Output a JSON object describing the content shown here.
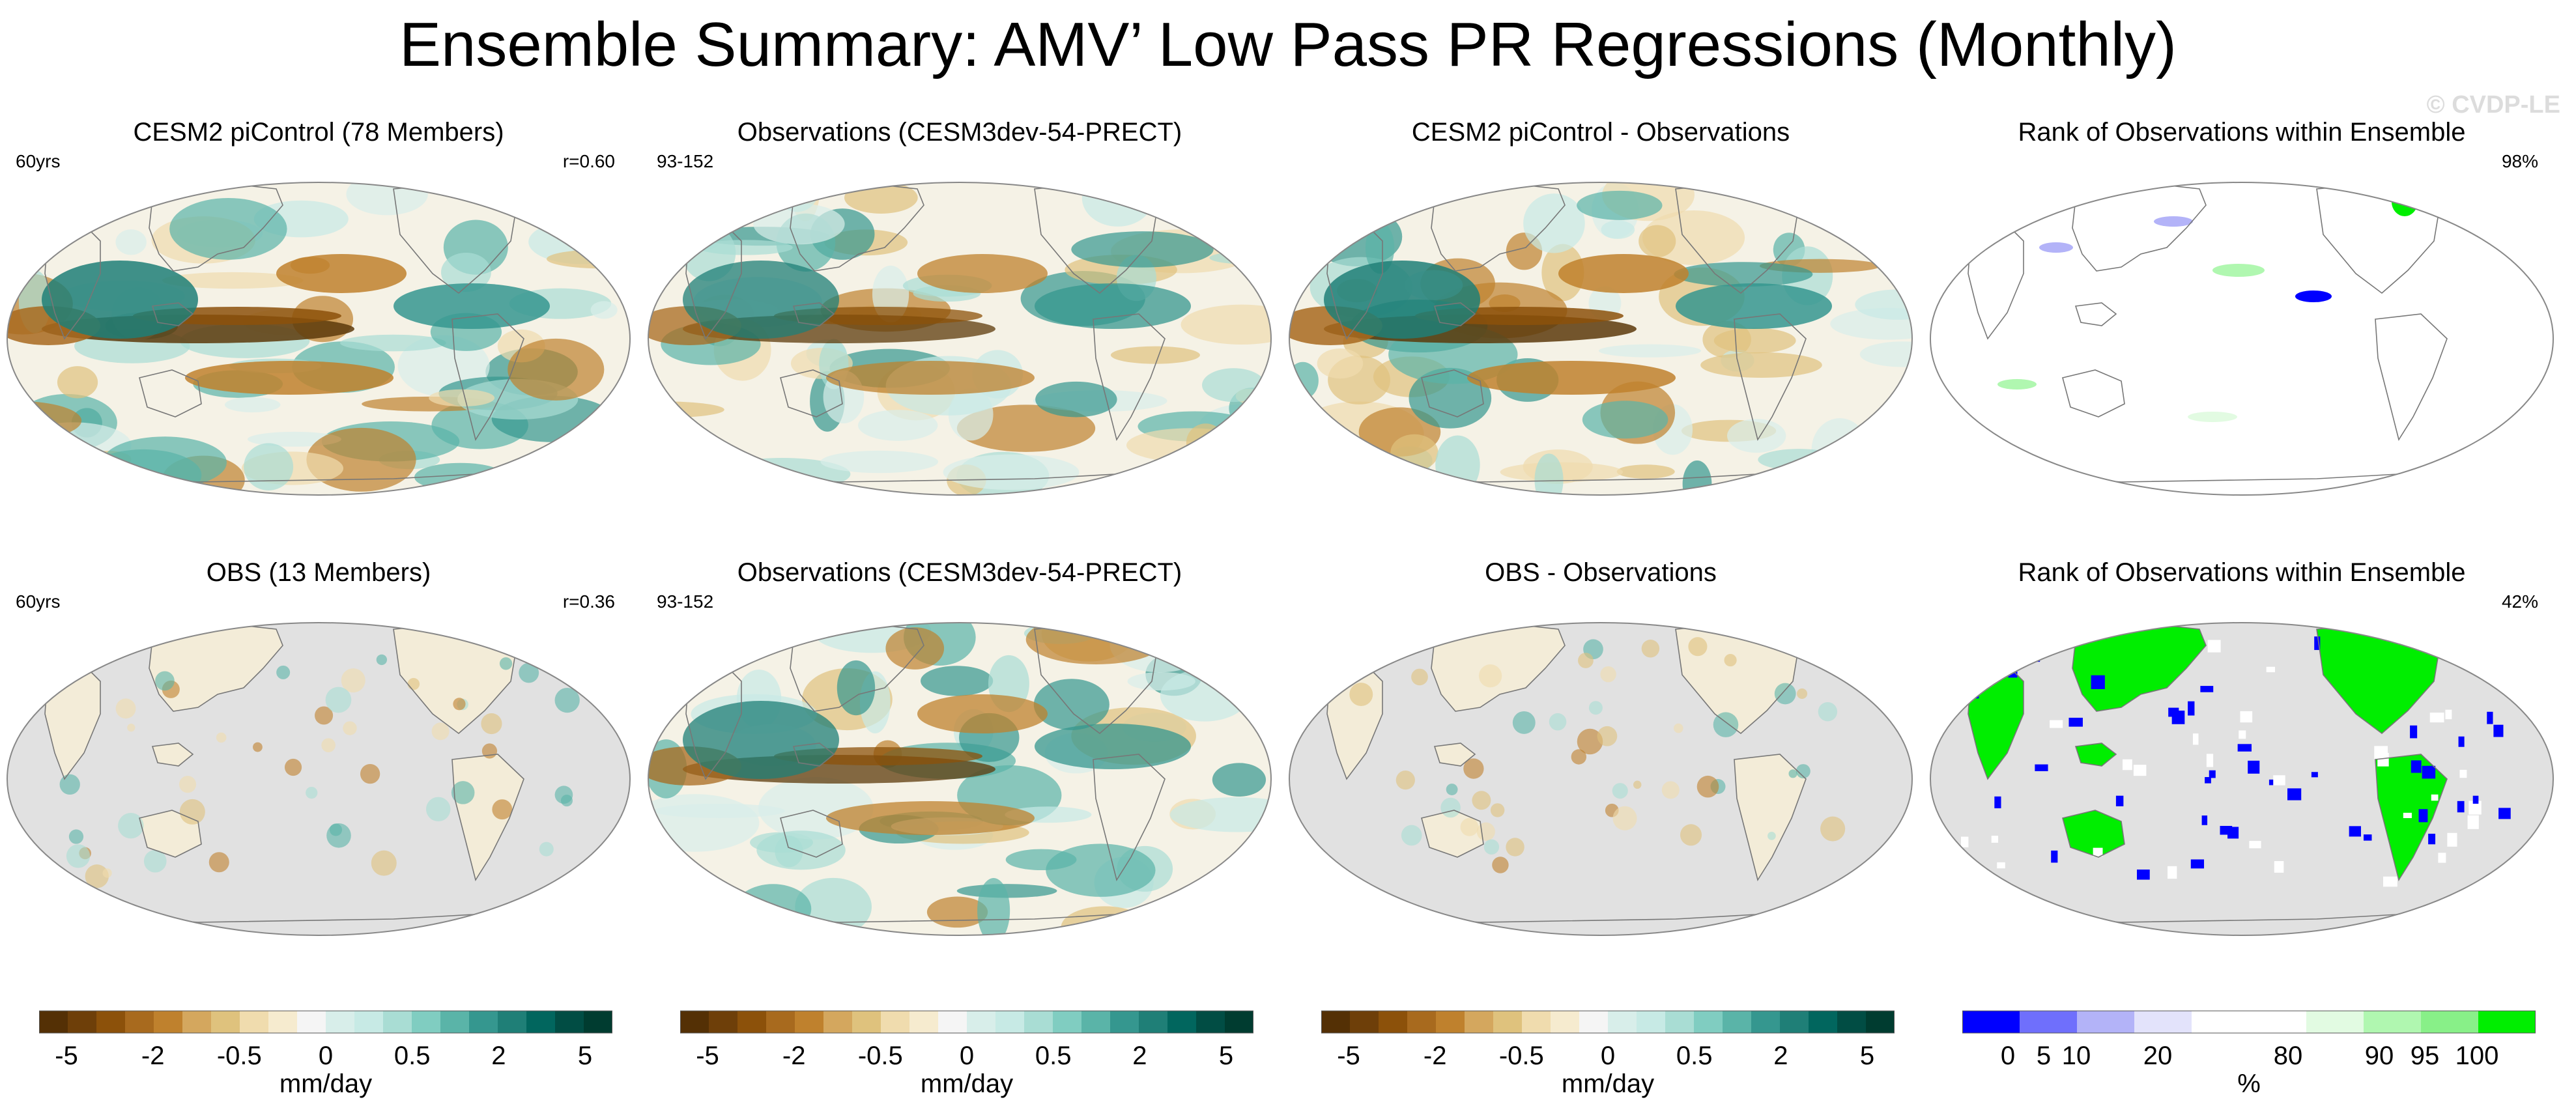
{
  "title": "Ensemble Summary: AMV’ Low Pass PR Regressions (Monthly)",
  "watermark": "© CVDP-LE",
  "panels": [
    {
      "title": "CESM2 piControl (78 Members)",
      "left": "60yrs",
      "right": "r=0.60",
      "style": "model"
    },
    {
      "title": "Observations (CESM3dev-54-PRECT)",
      "left": "93-152",
      "right": "",
      "style": "obs"
    },
    {
      "title": "CESM2 piControl - Observations",
      "left": "",
      "right": "",
      "style": "diff"
    },
    {
      "title": "Rank of Observations within Ensemble",
      "left": "",
      "right": "98%",
      "style": "rank-sparse"
    },
    {
      "title": "OBS (13 Members)",
      "left": "60yrs",
      "right": "r=0.36",
      "style": "land"
    },
    {
      "title": "Observations (CESM3dev-54-PRECT)",
      "left": "93-152",
      "right": "",
      "style": "obs"
    },
    {
      "title": "OBS - Observations",
      "left": "",
      "right": "",
      "style": "land"
    },
    {
      "title": "Rank of Observations within Ensemble",
      "left": "",
      "right": "42%",
      "style": "rank-land"
    }
  ],
  "colorbars": [
    {
      "unit": "mm/day",
      "ticks": [
        "-5",
        "-2",
        "-0.5",
        "0",
        "0.5",
        "2",
        "5"
      ],
      "colors": [
        "#543005",
        "#6e3f09",
        "#8c510a",
        "#a86a1e",
        "#bf812d",
        "#d4a75e",
        "#dfc27d",
        "#f0dcae",
        "#f6ebcf",
        "#f5f5f5",
        "#d8eeea",
        "#c7eae5",
        "#a9ddd4",
        "#80cdc1",
        "#5ab4a8",
        "#35978f",
        "#1f7f77",
        "#01665e",
        "#014d44",
        "#003c30"
      ]
    },
    {
      "unit": "mm/day",
      "ticks": [
        "-5",
        "-2",
        "-0.5",
        "0",
        "0.5",
        "2",
        "5"
      ],
      "colors": [
        "#543005",
        "#6e3f09",
        "#8c510a",
        "#a86a1e",
        "#bf812d",
        "#d4a75e",
        "#dfc27d",
        "#f0dcae",
        "#f6ebcf",
        "#f5f5f5",
        "#d8eeea",
        "#c7eae5",
        "#a9ddd4",
        "#80cdc1",
        "#5ab4a8",
        "#35978f",
        "#1f7f77",
        "#01665e",
        "#014d44",
        "#003c30"
      ]
    },
    {
      "unit": "mm/day",
      "ticks": [
        "-5",
        "-2",
        "-0.5",
        "0",
        "0.5",
        "2",
        "5"
      ],
      "colors": [
        "#543005",
        "#6e3f09",
        "#8c510a",
        "#a86a1e",
        "#bf812d",
        "#d4a75e",
        "#dfc27d",
        "#f0dcae",
        "#f6ebcf",
        "#f5f5f5",
        "#d8eeea",
        "#c7eae5",
        "#a9ddd4",
        "#80cdc1",
        "#5ab4a8",
        "#35978f",
        "#1f7f77",
        "#01665e",
        "#014d44",
        "#003c30"
      ]
    },
    {
      "unit": "%",
      "ticks": [
        "0",
        "5",
        "10",
        "20",
        "80",
        "90",
        "95",
        "100"
      ],
      "colors": [
        "#0000ff",
        "#6f6ffc",
        "#b3b3f8",
        "#e3e3fb",
        "#ffffff",
        "#ffffff",
        "#e2fbe2",
        "#b0f7b0",
        "#88f088",
        "#00ee00"
      ]
    }
  ],
  "colors": {
    "land_gray": "#e1e1e1",
    "brown": "#8c510a",
    "teal": "#01665e",
    "rank_high": "#00ee00",
    "rank_low": "#0000ff"
  }
}
